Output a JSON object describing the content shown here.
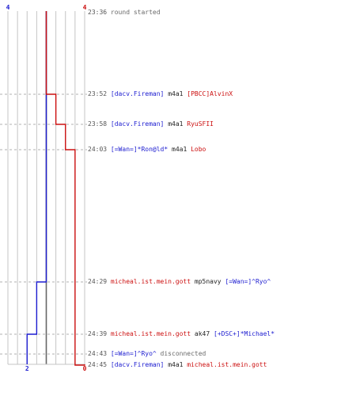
{
  "colors": {
    "blue_team": "#1c1cd0",
    "red_team": "#cc1010",
    "grid": "#c4c4c4",
    "dash": "#b0b0b0",
    "center": "#666666",
    "time": "#555555"
  },
  "score_labels": {
    "blue_start": "4",
    "red_start": "4",
    "blue_end": "2",
    "red_end": "0"
  },
  "events": [
    {
      "time": "23:36",
      "type": "system",
      "text": "round started"
    },
    {
      "time": "23:52",
      "type": "kill",
      "killer": "[dacv.Fireman]",
      "killer_team": "blue",
      "weapon": "m4a1",
      "victim": "[PBCC]AlvinX",
      "victim_team": "red"
    },
    {
      "time": "23:58",
      "type": "kill",
      "killer": "[dacv.Fireman]",
      "killer_team": "blue",
      "weapon": "m4a1",
      "victim": "RyuSFII",
      "victim_team": "red"
    },
    {
      "time": "24:03",
      "type": "kill",
      "killer": "[=Wan=]*Ron@ld*",
      "killer_team": "blue",
      "weapon": "m4a1",
      "victim": "Lobo",
      "victim_team": "red"
    },
    {
      "time": "24:29",
      "type": "kill",
      "killer": "micheal.ist.mein.gott",
      "killer_team": "red",
      "weapon": "mp5navy",
      "victim": "[=Wan=]^Ryo^",
      "victim_team": "blue"
    },
    {
      "time": "24:39",
      "type": "kill",
      "killer": "micheal.ist.mein.gott",
      "killer_team": "red",
      "weapon": "ak47",
      "victim": "[+DSC+]*Michael*",
      "victim_team": "blue"
    },
    {
      "time": "24:43",
      "type": "disconnect",
      "player": "[=Wan=]^Ryo^",
      "player_team": "blue",
      "text": "disconnected"
    },
    {
      "time": "24:45",
      "type": "kill",
      "killer": "[dacv.Fireman]",
      "killer_team": "blue",
      "weapon": "m4a1",
      "victim": "micheal.ist.mein.gott",
      "victim_team": "red"
    }
  ],
  "chart_data": {
    "type": "line",
    "x_unit": "round time",
    "x": [
      "23:36",
      "23:52",
      "23:58",
      "24:03",
      "24:29",
      "24:39",
      "24:43",
      "24:45"
    ],
    "series": [
      {
        "team": "blue",
        "values": [
          4,
          4,
          4,
          4,
          3,
          2,
          2,
          2
        ]
      },
      {
        "team": "red",
        "values": [
          4,
          3,
          2,
          1,
          1,
          1,
          1,
          0
        ]
      }
    ],
    "ylim": [
      0,
      4
    ]
  }
}
